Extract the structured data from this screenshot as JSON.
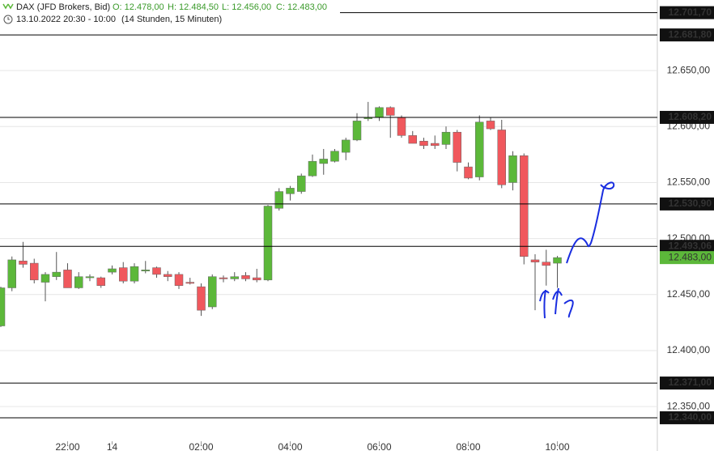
{
  "chart_data": {
    "type": "candlestick",
    "title": "DAX (JFD Brokers, Bid)",
    "ohlc_labels": [
      "O: 12.478,00",
      "H: 12.484,50",
      "L: 12.456,00",
      "C: 12.483,00"
    ],
    "subtitle": "13.10.2022 20:30 - 10:00",
    "subtitle_note": "(14 Stunden, 15 Minuten)",
    "categories": [
      null,
      null,
      null,
      null,
      null,
      null,
      "22:00",
      null,
      null,
      null,
      "14",
      null,
      null,
      null,
      null,
      null,
      null,
      null,
      "02:00",
      null,
      null,
      null,
      null,
      null,
      null,
      null,
      "04:00",
      null,
      null,
      null,
      null,
      null,
      null,
      null,
      "06:00",
      null,
      null,
      null,
      null,
      null,
      null,
      null,
      "08:00",
      null,
      null,
      null,
      null,
      null,
      null,
      null,
      "10:00"
    ],
    "open": [
      12422,
      12456,
      12480,
      12478,
      12461,
      12466,
      12472,
      12456,
      12465,
      12465,
      12470,
      12474,
      12462,
      12471,
      12474,
      12468,
      12468,
      12461,
      12457,
      12439,
      12465,
      12464,
      12467,
      12465,
      12463,
      12527,
      12540,
      12542,
      12556,
      12567,
      12569,
      12577,
      12588,
      12607,
      12608,
      12617,
      12608,
      12592,
      12587,
      12585,
      12584,
      12595,
      12564,
      12555,
      12605,
      12597,
      12550,
      12574,
      12481,
      12479,
      12478
    ],
    "high": [
      12457,
      12484,
      12497,
      12482,
      12470,
      12488,
      12478,
      12470,
      12468,
      12466,
      12476,
      12479,
      12478,
      12480,
      12475,
      12471,
      12470,
      12465,
      12460,
      12468,
      12467,
      12470,
      12470,
      12473,
      12530,
      12545,
      12547,
      12558,
      12575,
      12580,
      12580,
      12590,
      12612,
      12622,
      12618,
      12618,
      12610,
      12596,
      12590,
      12592,
      12600,
      12597,
      12568,
      12610,
      12608,
      12606,
      12578,
      12576,
      12486,
      12490,
      12484.5
    ],
    "low": [
      12421,
      12453,
      12474,
      12460,
      12444,
      12463,
      12456,
      12455,
      12462,
      12456,
      12468,
      12460,
      12460,
      12469,
      12465,
      12462,
      12455,
      12459,
      12431,
      12437,
      12461,
      12462,
      12462,
      12461,
      12462,
      12525,
      12534,
      12540,
      12555,
      12557,
      12568,
      12570,
      12587,
      12605,
      12605,
      12590,
      12590,
      12585,
      12580,
      12580,
      12580,
      12560,
      12553,
      12552,
      12597,
      12545,
      12543,
      12477,
      12436,
      12458,
      12456
    ],
    "close": [
      12456,
      12481,
      12477,
      12463,
      12468,
      12470,
      12456,
      12466,
      12466,
      12458,
      12473,
      12462,
      12475,
      12472,
      12468,
      12466,
      12458,
      12460,
      12436,
      12466,
      12464,
      12466,
      12464,
      12463,
      12529,
      12542,
      12545,
      12556,
      12569,
      12571,
      12578,
      12588,
      12605,
      12608,
      12617,
      12610,
      12592,
      12585,
      12583,
      12583,
      12595,
      12568,
      12554,
      12604,
      12598,
      12548,
      12574,
      12484,
      12479,
      12476,
      12483
    ],
    "up_color": "#5cb83a",
    "down_color": "#f0585d",
    "ylim": [
      12319,
      12713
    ],
    "yticks": [
      {
        "value": 12350,
        "label": "12.350,00"
      },
      {
        "value": 12400,
        "label": "12.400,00"
      },
      {
        "value": 12450,
        "label": "12.450,00"
      },
      {
        "value": 12500,
        "label": "12.500,00"
      },
      {
        "value": 12550,
        "label": "12.550,00"
      },
      {
        "value": 12600,
        "label": "12.600,00"
      },
      {
        "value": 12650,
        "label": "12.650,00"
      }
    ],
    "grid": true,
    "levels": [
      {
        "value": 12701.7,
        "label": "12.701,70"
      },
      {
        "value": 12681.8,
        "label": "12.681,80"
      },
      {
        "value": 12608.2,
        "label": "12.608,20"
      },
      {
        "value": 12530.9,
        "label": "12.530,90"
      },
      {
        "value": 12493.06,
        "label": "12.493,06"
      },
      {
        "value": 12371,
        "label": "12.371,00"
      },
      {
        "value": 12340,
        "label": "12.340,00"
      }
    ],
    "current_price": {
      "value": 12483,
      "label": "12.483,00"
    }
  }
}
